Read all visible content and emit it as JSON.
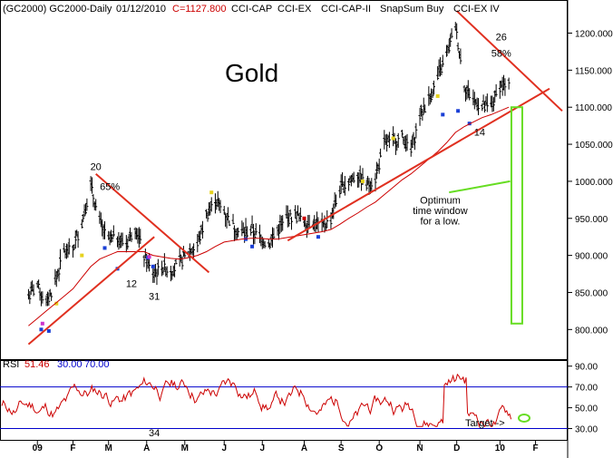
{
  "header": {
    "symbol": "(GC2000) GC2000-Daily",
    "date": "01/12/2010",
    "close": "C=1127.800",
    "indicators": [
      "CCI-CAP",
      "CCI-EX",
      "CCI-CAP-II",
      "SnapSum Buy",
      "CCI-EX IV"
    ]
  },
  "title": "Gold",
  "colors": {
    "price_bar": "#000000",
    "moving_average": "#cc0000",
    "trendline": "#e03020",
    "rsi_line": "#cc0000",
    "rsi_level": "#0000cc",
    "time_window": "#66dd22",
    "rsi_value": "#cc0000",
    "rsi_level_text": "#0000cc",
    "markers": [
      "#1a3fd6",
      "#e6d21e",
      "#cc33cc",
      "#cc0000"
    ]
  },
  "chart_data": {
    "type": "ohlc",
    "price_axis": {
      "ticks": [
        "1200.000",
        "1150.000",
        "1100.000",
        "1050.000",
        "1000.000",
        "950.000",
        "900.000",
        "850.000",
        "800.000"
      ],
      "ylim": [
        760,
        1230
      ]
    },
    "time_axis": {
      "ticks": [
        "09",
        "F",
        "M",
        "A",
        "M",
        "J",
        "J",
        "A",
        "S",
        "O",
        "N",
        "D",
        "10",
        "F"
      ]
    },
    "x_range": [
      "2008-12-08",
      "2010-02-22"
    ],
    "bar_data": {
      "dates": [
        "2008-12-29",
        "2009-01-05",
        "2009-01-12",
        "2009-01-19",
        "2009-01-26",
        "2009-02-02",
        "2009-02-09",
        "2009-02-16",
        "2009-02-23",
        "2009-03-02",
        "2009-03-09",
        "2009-03-16",
        "2009-03-23",
        "2009-03-30",
        "2009-04-06",
        "2009-04-13",
        "2009-04-20",
        "2009-04-27",
        "2009-05-04",
        "2009-05-11",
        "2009-05-18",
        "2009-05-25",
        "2009-06-01",
        "2009-06-08",
        "2009-06-15",
        "2009-06-22",
        "2009-06-29",
        "2009-07-06",
        "2009-07-13",
        "2009-07-20",
        "2009-07-27",
        "2009-08-03",
        "2009-08-10",
        "2009-08-17",
        "2009-08-24",
        "2009-08-31",
        "2009-09-07",
        "2009-09-14",
        "2009-09-21",
        "2009-09-28",
        "2009-10-05",
        "2009-10-12",
        "2009-10-19",
        "2009-10-26",
        "2009-11-02",
        "2009-11-09",
        "2009-11-16",
        "2009-11-23",
        "2009-11-30",
        "2009-12-07",
        "2009-12-14",
        "2009-12-21",
        "2009-12-28",
        "2010-01-04",
        "2010-01-11"
      ],
      "close": [
        845,
        860,
        835,
        865,
        905,
        910,
        945,
        995,
        945,
        920,
        925,
        915,
        940,
        900,
        875,
        885,
        880,
        890,
        905,
        915,
        955,
        975,
        960,
        940,
        930,
        935,
        925,
        915,
        935,
        950,
        955,
        945,
        945,
        940,
        950,
        990,
        1000,
        1010,
        995,
        1005,
        1050,
        1055,
        1060,
        1040,
        1090,
        1110,
        1140,
        1170,
        1210,
        1130,
        1110,
        1100,
        1100,
        1130,
        1128
      ]
    },
    "moving_average": [
      805,
      815,
      825,
      835,
      845,
      855,
      870,
      885,
      895,
      900,
      905,
      905,
      905,
      905,
      900,
      898,
      896,
      895,
      897,
      900,
      905,
      912,
      918,
      920,
      922,
      923,
      923,
      922,
      922,
      924,
      926,
      928,
      930,
      932,
      935,
      942,
      950,
      957,
      965,
      972,
      982,
      992,
      1002,
      1010,
      1020,
      1030,
      1040,
      1052,
      1066,
      1074,
      1080,
      1086,
      1090,
      1095,
      1100
    ],
    "rsi": {
      "name": "RSI",
      "value": "51.46",
      "levels": [
        "30.00",
        "70.00"
      ],
      "ticks": [
        "90.00",
        "70.00",
        "50.00",
        "30.00"
      ],
      "ylim": [
        20,
        95
      ]
    },
    "annotations": [
      {
        "text": "20",
        "x": "2009-02-20",
        "y": 1015
      },
      {
        "text": "65%",
        "x": "2009-03-03",
        "y": 988
      },
      {
        "text": "12",
        "x": "2009-03-20",
        "y": 857
      },
      {
        "text": "31",
        "x": "2009-04-07",
        "y": 840
      },
      {
        "text": "26",
        "x": "2010-01-05",
        "y": 1190
      },
      {
        "text": "58%",
        "x": "2010-01-05",
        "y": 1168
      },
      {
        "text": "14",
        "x": "2009-12-19",
        "y": 1062
      },
      {
        "text": "Optimum",
        "x": "2009-11-18",
        "y": 970
      },
      {
        "text": "time window",
        "x": "2009-11-18",
        "y": 956
      },
      {
        "text": "for a low.",
        "x": "2009-11-18",
        "y": 942
      },
      {
        "text": "34",
        "x": "2009-04-07",
        "y": 12
      }
    ],
    "target_label": "Target ->"
  }
}
